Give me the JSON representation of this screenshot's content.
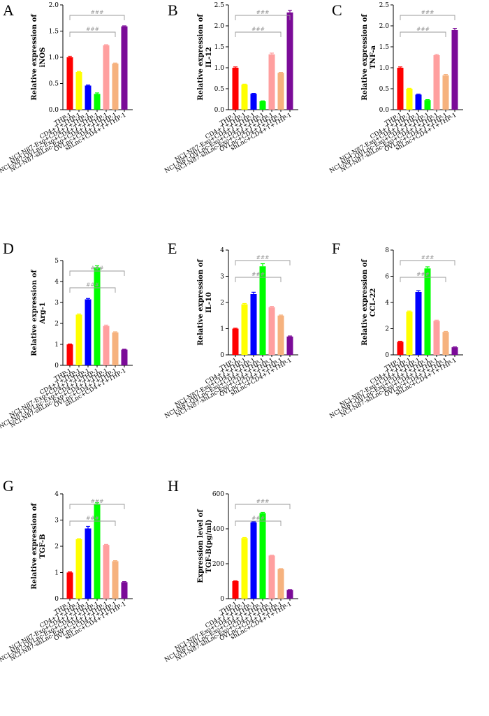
{
  "chart_data": [
    {
      "type": "bar",
      "panel": "A",
      "ylabel_lines": [
        "Relative expression of",
        "iNOS"
      ],
      "ylim": [
        0,
        2.0
      ],
      "yticks": [
        "0.0",
        "0.5",
        "1.0",
        "1.5",
        "2.0"
      ],
      "categories": [
        "THP-1",
        "CD4+T+THP-1",
        "NCI-N87-Exo+CD4+T+THP-1",
        "NCI-N87-OVLnc-Exo+CD4+T+THP-1",
        "NCI-N87-shLnc-Exo+CD4+T+THP-1",
        "OVLnc+CD4+T+THP-1",
        "shLnc+CD4+T+THP-1"
      ],
      "values": [
        1.0,
        0.72,
        0.46,
        0.3,
        1.23,
        0.88,
        1.59
      ],
      "errors": [
        0.02,
        0.01,
        0.01,
        0.02,
        0.01,
        0.01,
        0.01
      ],
      "significance": [
        "###",
        "###"
      ]
    },
    {
      "type": "bar",
      "panel": "B",
      "ylabel_lines": [
        "Relative expression of",
        "IL-12"
      ],
      "ylim": [
        0,
        2.5
      ],
      "yticks": [
        "0.0",
        "0.5",
        "1.0",
        "1.5",
        "2.0",
        "2.5"
      ],
      "categories": [
        "THP-1",
        "CD4+T+THP-1",
        "NCI-N87-Exo+CD4+T+THP-1",
        "NCI-N87-OVLnc-Exo+CD4+T+THP-1",
        "NCI-N87-shLnc-Exo+CD4+T+THP-1",
        "OVLnc+CD4+T+THP-1",
        "shLnc+CD4+T+THP-1"
      ],
      "values": [
        1.0,
        0.6,
        0.38,
        0.2,
        1.32,
        0.88,
        2.32
      ],
      "errors": [
        0.02,
        0.01,
        0.01,
        0.01,
        0.03,
        0.01,
        0.05
      ],
      "significance": [
        "###",
        "###"
      ]
    },
    {
      "type": "bar",
      "panel": "C",
      "ylabel_lines": [
        "Relative expression of",
        "TNF-a"
      ],
      "ylim": [
        0,
        2.5
      ],
      "yticks": [
        "0.0",
        "0.5",
        "1.0",
        "1.5",
        "2.0",
        "2.5"
      ],
      "categories": [
        "THP-1",
        "CD4+T+THP-1",
        "NCI-N87-Exo+CD4+T+THP-1",
        "NCI-N87-OVLnc-Exo+CD4+T+THP-1",
        "NCI-N87-shLnc-Exo+CD4+T+THP-1",
        "OVLnc+CD4+T+THP-1",
        "shLnc+CD4+T+THP-1"
      ],
      "values": [
        1.0,
        0.5,
        0.36,
        0.23,
        1.3,
        0.82,
        1.9
      ],
      "errors": [
        0.02,
        0.01,
        0.01,
        0.01,
        0.02,
        0.02,
        0.04
      ],
      "significance": [
        "###",
        "###"
      ]
    },
    {
      "type": "bar",
      "panel": "D",
      "ylabel_lines": [
        "Relative expression of",
        "Arg-1"
      ],
      "ylim": [
        0,
        5
      ],
      "yticks": [
        "0",
        "1",
        "2",
        "3",
        "4",
        "5"
      ],
      "categories": [
        "THP-1",
        "CD4+T+THP-1",
        "NCI-N87-Exo+CD4+T+THP-1",
        "NCI-N87-OVLnc-Exo+CD4+T+THP-1",
        "NCI-N87-shLnc-Exo+CD4+T+THP-1",
        "OVLnc+CD4+T+THP-1",
        "shLnc+CD4+T+THP-1"
      ],
      "values": [
        1.0,
        2.42,
        3.15,
        4.67,
        1.88,
        1.57,
        0.75
      ],
      "errors": [
        0.02,
        0.03,
        0.04,
        0.08,
        0.04,
        0.03,
        0.02
      ],
      "significance": [
        "###",
        "###"
      ]
    },
    {
      "type": "bar",
      "panel": "E",
      "ylabel_lines": [
        "Relative expression of",
        "IL-10"
      ],
      "ylim": [
        0,
        4
      ],
      "yticks": [
        "0",
        "1",
        "2",
        "3",
        "4"
      ],
      "categories": [
        "THP-1",
        "CD4+T+THP-1",
        "NCI-N87-Exo+CD4+T+THP-1",
        "NCI-N87-OVLnc-Exo+CD4+T+THP-1",
        "NCI-N87-shLnc-Exo+CD4+T+THP-1",
        "OVLnc+CD4+T+THP-1",
        "shLnc+CD4+T+THP-1"
      ],
      "values": [
        1.0,
        1.93,
        2.32,
        3.38,
        1.82,
        1.5,
        0.7
      ],
      "errors": [
        0.02,
        0.03,
        0.07,
        0.1,
        0.03,
        0.02,
        0.02
      ],
      "significance": [
        "###",
        "###"
      ]
    },
    {
      "type": "bar",
      "panel": "F",
      "ylabel_lines": [
        "Relative expression of",
        "CCL-22"
      ],
      "ylim": [
        0,
        8
      ],
      "yticks": [
        "0",
        "2",
        "4",
        "6",
        "8"
      ],
      "categories": [
        "THP-1",
        "CD4+T+THP-1",
        "NCI-N87-Exo+CD4+T+THP-1",
        "NCI-N87-OVLnc-Exo+CD4+T+THP-1",
        "NCI-N87-shLnc-Exo+CD4+T+THP-1",
        "OVLnc+CD4+T+THP-1",
        "shLnc+CD4+T+THP-1"
      ],
      "values": [
        1.0,
        3.3,
        4.8,
        6.6,
        2.6,
        1.75,
        0.58
      ],
      "errors": [
        0.04,
        0.05,
        0.1,
        0.12,
        0.05,
        0.04,
        0.03
      ],
      "significance": [
        "###",
        "###"
      ]
    },
    {
      "type": "bar",
      "panel": "G",
      "ylabel_lines": [
        "Relative expression of",
        "TGF-B"
      ],
      "ylim": [
        0,
        4
      ],
      "yticks": [
        "0",
        "1",
        "2",
        "3",
        "4"
      ],
      "categories": [
        "THP-1",
        "CD4+T+THP-1",
        "NCI-N87-Exo+CD4+T+THP-1",
        "NCI-N87-OVLnc-Exo+CD4+T+THP-1",
        "NCI-N87-shLnc-Exo+CD4+T+THP-1",
        "OVLnc+CD4+T+THP-1",
        "shLnc+CD4+T+THP-1"
      ],
      "values": [
        1.0,
        2.27,
        2.68,
        3.62,
        2.05,
        1.43,
        0.63
      ],
      "errors": [
        0.02,
        0.02,
        0.08,
        0.04,
        0.02,
        0.02,
        0.02
      ],
      "significance": [
        "###",
        "###"
      ]
    },
    {
      "type": "bar",
      "panel": "H",
      "ylabel_lines": [
        "Expression level of",
        "TGF-B(pg/ml)"
      ],
      "ylim": [
        0,
        600
      ],
      "yticks": [
        "0",
        "200",
        "400",
        "600"
      ],
      "categories": [
        "THP-1",
        "CD4+T+THP-1",
        "NCI-N87-Exo+CD4+T+THP-1",
        "NCI-N87-OVLnc-Exo+CD4+T+THP-1",
        "NCI-N87-shLnc-Exo+CD4+T+THP-1",
        "OVLnc+CD4+T+THP-1",
        "shLnc+CD4+T+THP-1"
      ],
      "values": [
        100,
        347,
        437,
        490,
        247,
        170,
        50
      ],
      "errors": [
        2,
        3,
        3,
        4,
        2,
        2,
        2
      ],
      "significance": [
        "###",
        "###"
      ]
    }
  ],
  "colors": [
    "#ff0000",
    "#ffff00",
    "#0000ff",
    "#00ff00",
    "#ff9f9f",
    "#f6b27e",
    "#7b0b98"
  ],
  "bracket_color": "#9a9a9a"
}
